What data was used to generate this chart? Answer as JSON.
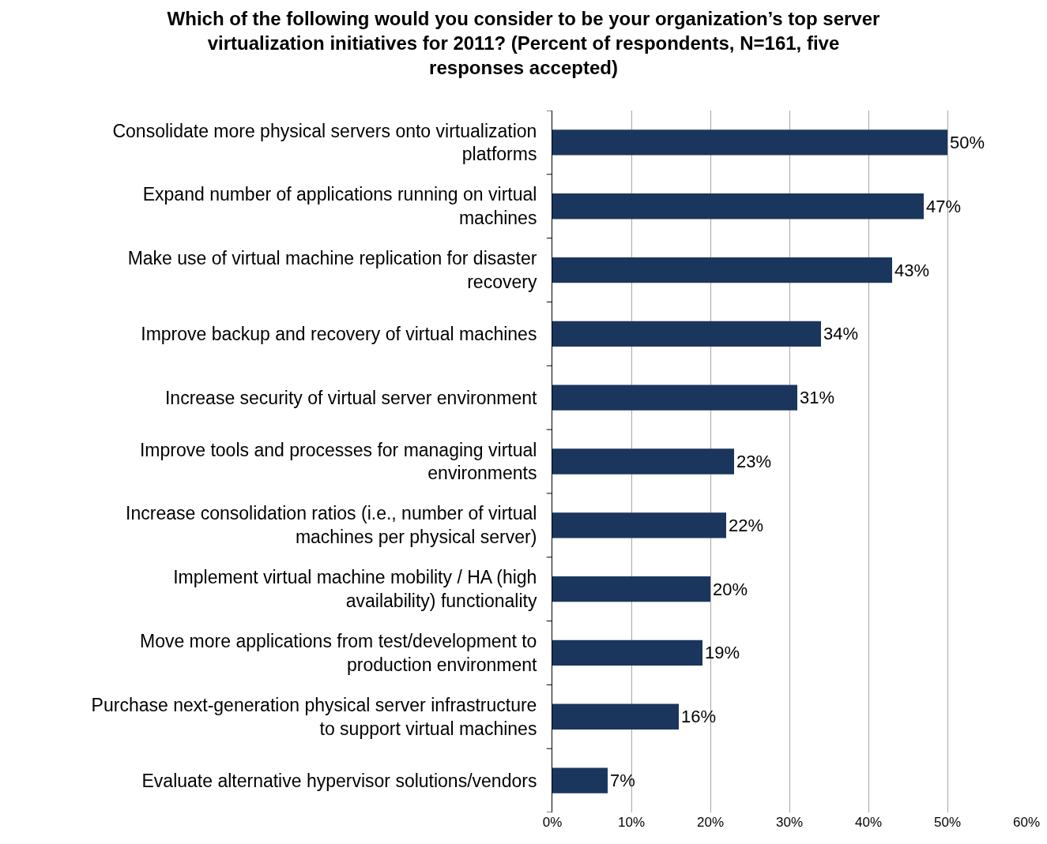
{
  "chart_data": {
    "type": "bar",
    "orientation": "horizontal",
    "title": "Which of the following would you consider to be your organization’s top server virtualization initiatives for 2011? (Percent of respondents, N=161, five responses accepted)",
    "categories": [
      "Consolidate more physical servers onto virtualization platforms",
      "Expand number of applications running on virtual machines",
      "Make use of virtual machine replication for disaster recovery",
      "Improve backup and recovery of virtual machines",
      "Increase security of virtual server environment",
      "Improve tools and processes for managing virtual environments",
      "Increase consolidation ratios (i.e., number of virtual machines per physical server)",
      "Implement virtual machine mobility / HA (high availability) functionality",
      "Move more applications from test/development to production environment",
      "Purchase next-generation physical server infrastructure to support virtual machines",
      "Evaluate alternative hypervisor solutions/vendors"
    ],
    "values": [
      50,
      47,
      43,
      34,
      31,
      23,
      22,
      20,
      19,
      16,
      7
    ],
    "value_labels": [
      "50%",
      "47%",
      "43%",
      "34%",
      "31%",
      "23%",
      "22%",
      "20%",
      "19%",
      "16%",
      "7%"
    ],
    "color": "#1b365d",
    "xlim": [
      0,
      60
    ],
    "xticks": [
      {
        "value": 0,
        "label": "0%"
      },
      {
        "value": 10,
        "label": "10%"
      },
      {
        "value": 20,
        "label": "20%"
      },
      {
        "value": 30,
        "label": "30%"
      },
      {
        "value": 40,
        "label": "40%"
      },
      {
        "value": 50,
        "label": "50%"
      },
      {
        "value": 60,
        "label": "60%"
      }
    ],
    "grid": "x"
  }
}
